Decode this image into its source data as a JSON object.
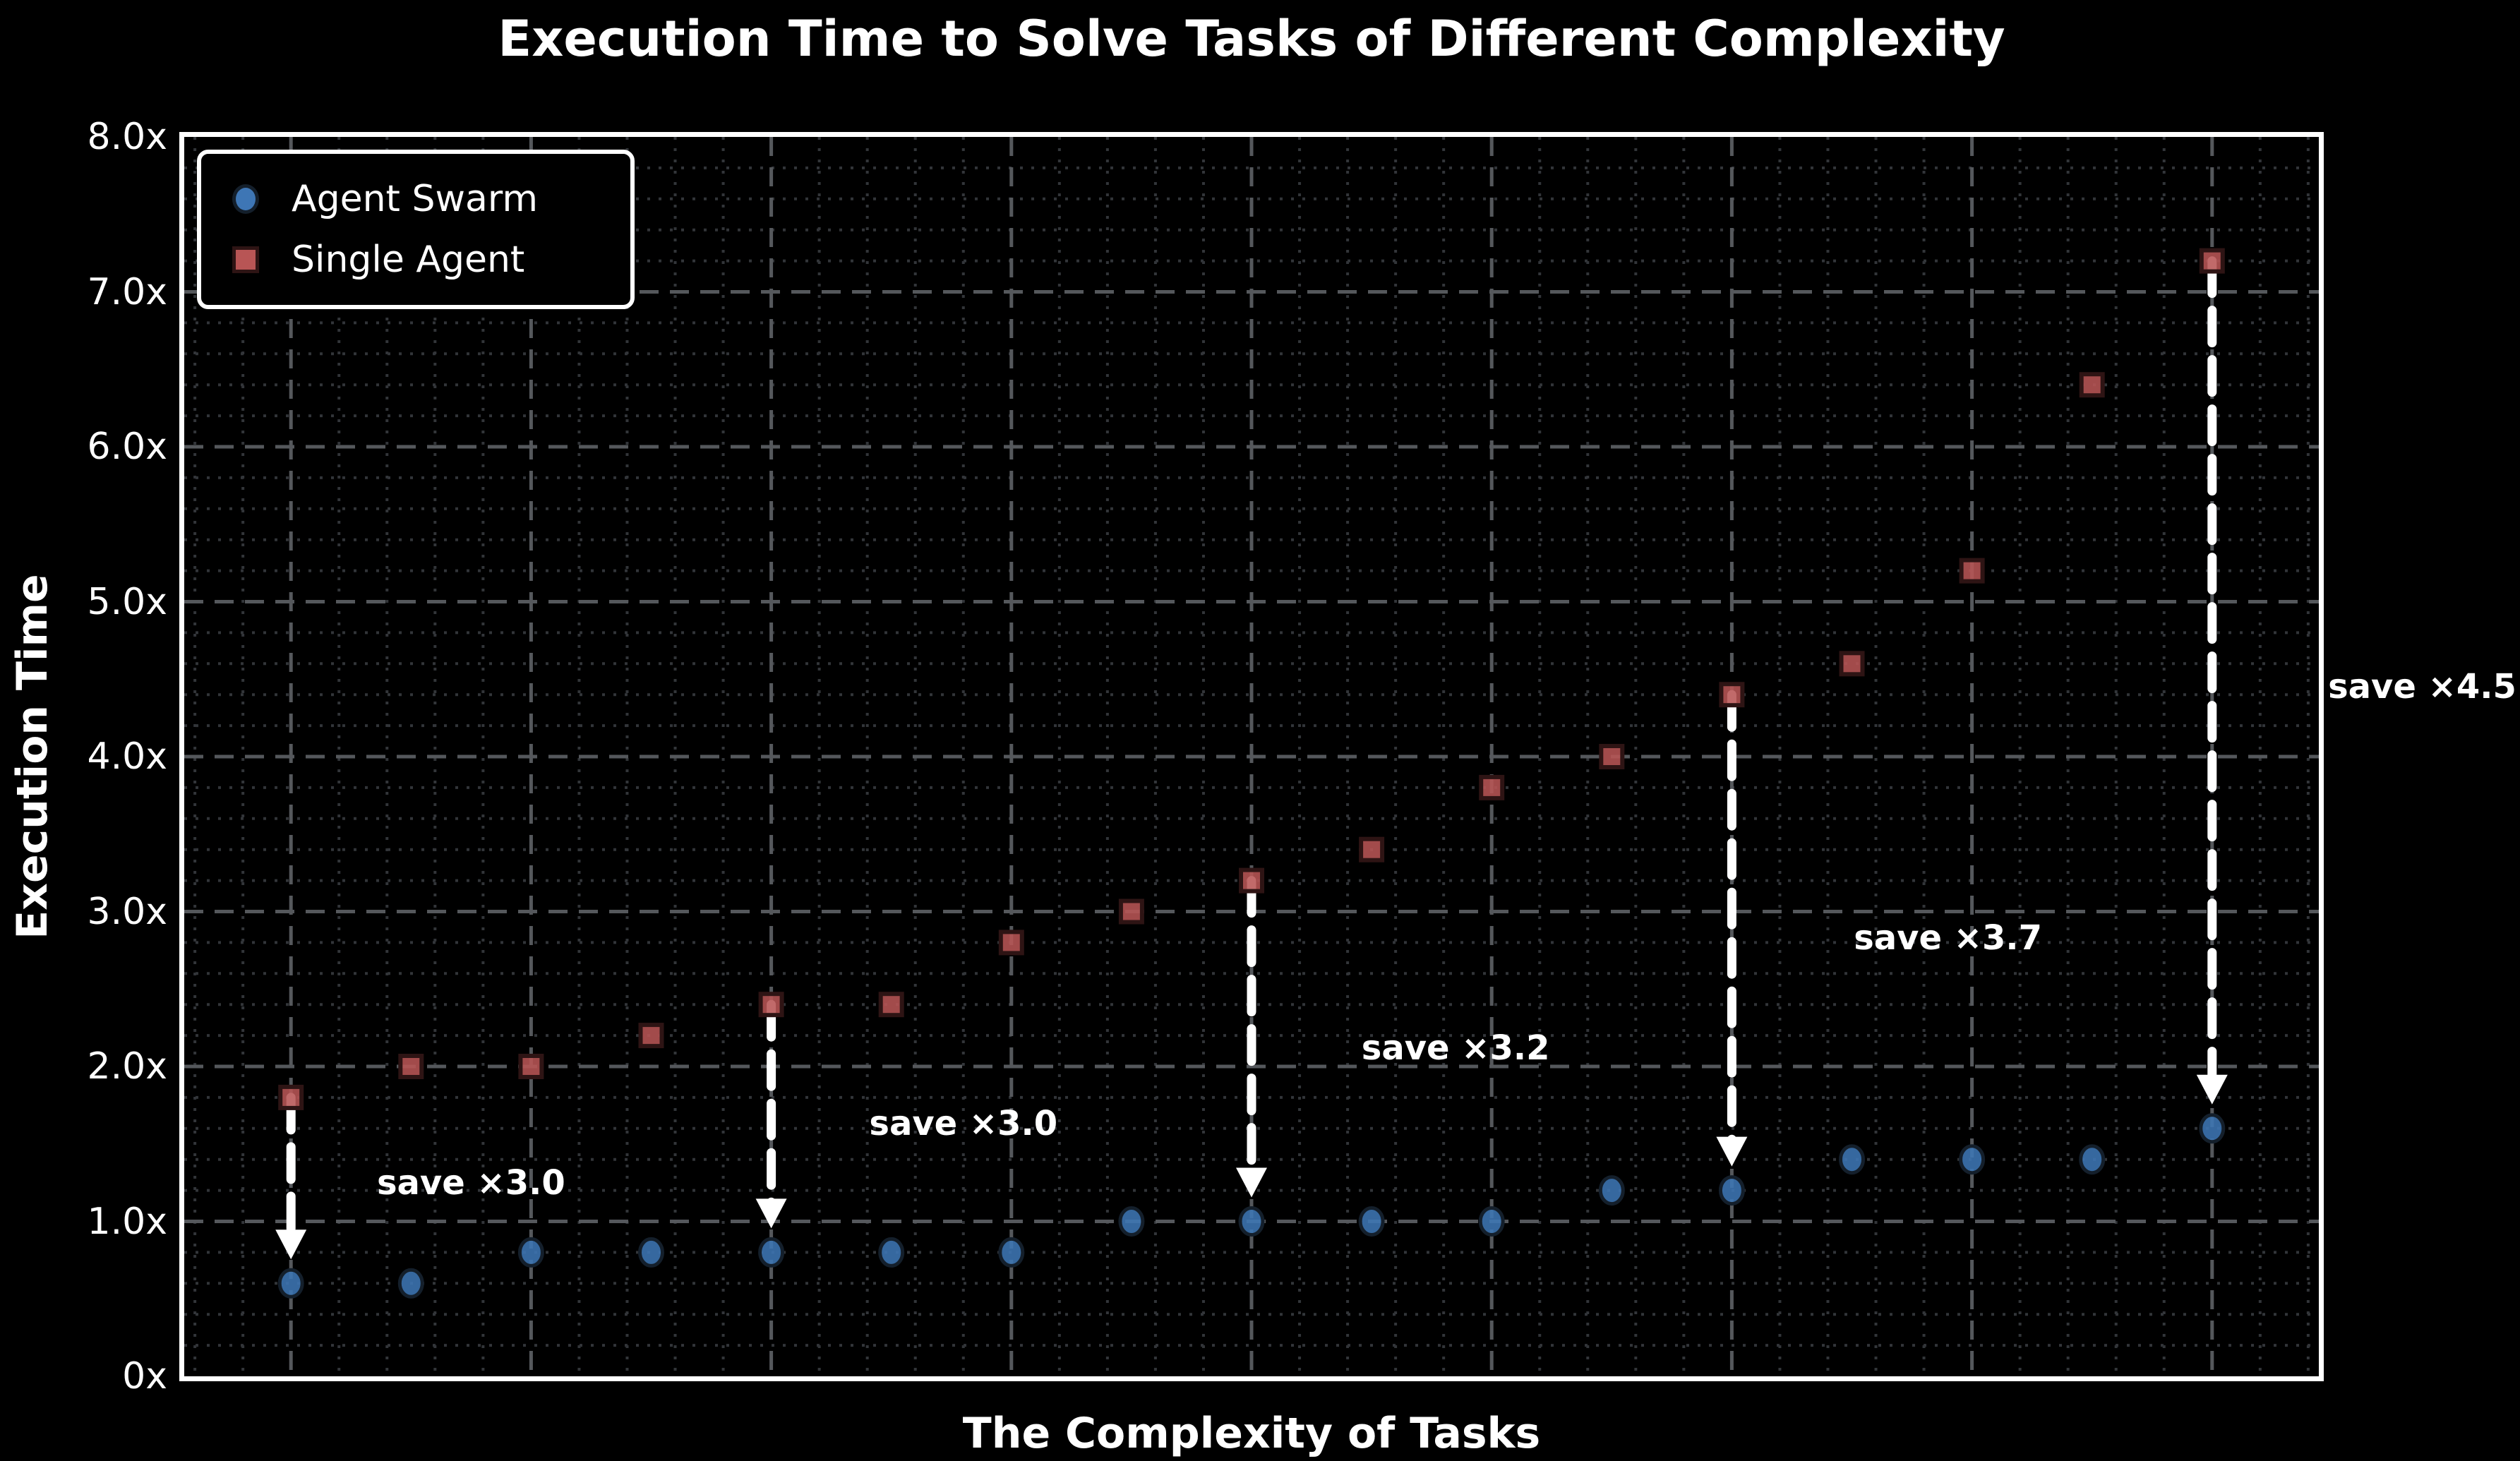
{
  "title": "Execution Time to Solve Tasks of Different Complexity",
  "chart_data": {
    "type": "scatter",
    "title": "Execution Time to Solve Tasks of Different Complexity",
    "xlabel": "The Complexity of Tasks",
    "ylabel": "Execution Time",
    "x": [
      1,
      2,
      3,
      4,
      5,
      6,
      7,
      8,
      9,
      10,
      11,
      12,
      13,
      14,
      15,
      16,
      17
    ],
    "series": [
      {
        "name": "Agent Swarm",
        "marker": "circle",
        "fill": "#3e76b5",
        "edge": "#141f2b",
        "values": [
          0.6,
          0.6,
          0.8,
          0.8,
          0.8,
          0.8,
          0.8,
          1.0,
          1.0,
          1.0,
          1.0,
          1.2,
          1.2,
          1.4,
          1.4,
          1.4,
          1.6
        ]
      },
      {
        "name": "Single Agent",
        "marker": "square",
        "fill": "#b85555",
        "edge": "#2e1414",
        "values": [
          1.8,
          2.0,
          2.0,
          2.2,
          2.4,
          2.4,
          2.8,
          3.0,
          3.2,
          3.4,
          3.8,
          4.0,
          4.4,
          4.6,
          5.2,
          6.4,
          7.2
        ]
      }
    ],
    "ylim": [
      0,
      8
    ],
    "yticks": [
      {
        "value": 0,
        "label": "0x"
      },
      {
        "value": 1,
        "label": "1.0x"
      },
      {
        "value": 2,
        "label": "2.0x"
      },
      {
        "value": 3,
        "label": "3.0x"
      },
      {
        "value": 4,
        "label": "4.0x"
      },
      {
        "value": 5,
        "label": "5.0x"
      },
      {
        "value": 6,
        "label": "6.0x"
      },
      {
        "value": 7,
        "label": "7.0x"
      },
      {
        "value": 8,
        "label": "8.0x"
      }
    ],
    "x_major_gridlines": [
      1,
      3,
      5,
      7,
      9,
      11,
      13,
      15,
      17
    ],
    "grid": {
      "major_color": "#55585c",
      "minor_color": "#323539",
      "major_style": "dashed",
      "minor_style": "dotted",
      "minor_y_step": 0.2
    },
    "legend": {
      "position": "upper-left",
      "entries": [
        "Agent Swarm",
        "Single Agent"
      ]
    },
    "annotations": [
      {
        "x": 1,
        "from": 1.8,
        "to": 0.6,
        "label": "save ×3.0",
        "label_center": [
          2.5,
          1.25
        ]
      },
      {
        "x": 5,
        "from": 2.4,
        "to": 0.8,
        "label": "save ×3.0",
        "label_center": [
          6.6,
          1.63
        ]
      },
      {
        "x": 9,
        "from": 3.2,
        "to": 1.0,
        "label": "save ×3.2",
        "label_center": [
          10.7,
          2.12
        ]
      },
      {
        "x": 13,
        "from": 4.4,
        "to": 1.2,
        "label": "save ×3.7",
        "label_center": [
          14.8,
          2.83
        ]
      },
      {
        "x": 17,
        "from": 7.2,
        "to": 1.6,
        "label": "save ×4.5",
        "label_center": [
          18.75,
          4.45
        ]
      }
    ],
    "colors": {
      "background": "#000000",
      "text": "#ffffff",
      "arrow": "#ffffff",
      "spine": "#ffffff"
    }
  }
}
